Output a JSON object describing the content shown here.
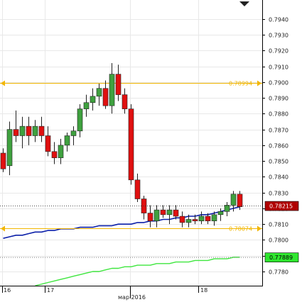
{
  "chart_data": {
    "type": "candlestick",
    "title": "",
    "xlabel": "",
    "ylabel": "",
    "ylim": [
      0.7771,
      0.7952
    ],
    "grid": true,
    "price_ticks": [
      "0.7940",
      "0.7930",
      "0.7920",
      "0.7910",
      "0.7900",
      "0.7890",
      "0.7880",
      "0.7870",
      "0.7860",
      "0.7850",
      "0.7840",
      "0.7830",
      "0.7820",
      "0.7810",
      "0.7800",
      "0.7790",
      "0.7780"
    ],
    "time_labels": [
      "16",
      "17",
      "мар 2016",
      "18"
    ],
    "colors": {
      "bull": "#3fa13f",
      "bear": "#e01010",
      "ma_blue": "#0b1fa8",
      "ma_green": "#3ee63e",
      "hline": "#f2b600",
      "current_tag": "#b00000",
      "green_tag": "#2ee62e"
    },
    "horizontal_lines": [
      {
        "label": "0.78994",
        "value": 0.78994
      },
      {
        "label": "0.78074",
        "value": 0.78074
      }
    ],
    "price_tags": [
      {
        "label": "0.78215",
        "value": 0.78215,
        "kind": "current"
      },
      {
        "label": "0.77889",
        "value": 0.77889,
        "kind": "indicator"
      }
    ],
    "candles": [
      {
        "o": 0.7855,
        "h": 0.7858,
        "l": 0.7843,
        "c": 0.7845
      },
      {
        "o": 0.7847,
        "h": 0.7875,
        "l": 0.7841,
        "c": 0.787
      },
      {
        "o": 0.787,
        "h": 0.7882,
        "l": 0.7862,
        "c": 0.7866
      },
      {
        "o": 0.7866,
        "h": 0.7878,
        "l": 0.7858,
        "c": 0.7872
      },
      {
        "o": 0.7872,
        "h": 0.7878,
        "l": 0.786,
        "c": 0.7866
      },
      {
        "o": 0.7866,
        "h": 0.7876,
        "l": 0.7862,
        "c": 0.7872
      },
      {
        "o": 0.7872,
        "h": 0.7878,
        "l": 0.7862,
        "c": 0.7866
      },
      {
        "o": 0.7866,
        "h": 0.7872,
        "l": 0.7853,
        "c": 0.7856
      },
      {
        "o": 0.7856,
        "h": 0.7862,
        "l": 0.7848,
        "c": 0.7852
      },
      {
        "o": 0.7852,
        "h": 0.7864,
        "l": 0.7848,
        "c": 0.786
      },
      {
        "o": 0.786,
        "h": 0.7868,
        "l": 0.7856,
        "c": 0.7866
      },
      {
        "o": 0.7866,
        "h": 0.7872,
        "l": 0.786,
        "c": 0.7869
      },
      {
        "o": 0.7869,
        "h": 0.7886,
        "l": 0.7865,
        "c": 0.7883
      },
      {
        "o": 0.7883,
        "h": 0.7892,
        "l": 0.7878,
        "c": 0.7887
      },
      {
        "o": 0.7887,
        "h": 0.7896,
        "l": 0.7882,
        "c": 0.7891
      },
      {
        "o": 0.7891,
        "h": 0.7899,
        "l": 0.7885,
        "c": 0.7896
      },
      {
        "o": 0.7896,
        "h": 0.7901,
        "l": 0.7883,
        "c": 0.7885
      },
      {
        "o": 0.7885,
        "h": 0.7912,
        "l": 0.788,
        "c": 0.7905
      },
      {
        "o": 0.7905,
        "h": 0.7911,
        "l": 0.7888,
        "c": 0.7892
      },
      {
        "o": 0.7892,
        "h": 0.7896,
        "l": 0.788,
        "c": 0.7883
      },
      {
        "o": 0.7883,
        "h": 0.7886,
        "l": 0.7835,
        "c": 0.7838
      },
      {
        "o": 0.7838,
        "h": 0.7842,
        "l": 0.7824,
        "c": 0.7826
      },
      {
        "o": 0.7826,
        "h": 0.7828,
        "l": 0.7813,
        "c": 0.7817
      },
      {
        "o": 0.7817,
        "h": 0.7822,
        "l": 0.7808,
        "c": 0.7812
      },
      {
        "o": 0.7812,
        "h": 0.7822,
        "l": 0.7808,
        "c": 0.7819
      },
      {
        "o": 0.7819,
        "h": 0.7822,
        "l": 0.7814,
        "c": 0.7816
      },
      {
        "o": 0.7816,
        "h": 0.7822,
        "l": 0.781,
        "c": 0.7819
      },
      {
        "o": 0.7819,
        "h": 0.7822,
        "l": 0.7813,
        "c": 0.7815
      },
      {
        "o": 0.7815,
        "h": 0.7818,
        "l": 0.7808,
        "c": 0.7811
      },
      {
        "o": 0.7811,
        "h": 0.7816,
        "l": 0.7808,
        "c": 0.7813
      },
      {
        "o": 0.7813,
        "h": 0.7816,
        "l": 0.781,
        "c": 0.7812
      },
      {
        "o": 0.7812,
        "h": 0.7818,
        "l": 0.781,
        "c": 0.7815
      },
      {
        "o": 0.7815,
        "h": 0.7817,
        "l": 0.781,
        "c": 0.7812
      },
      {
        "o": 0.7812,
        "h": 0.7818,
        "l": 0.7809,
        "c": 0.7816
      },
      {
        "o": 0.7816,
        "h": 0.782,
        "l": 0.7812,
        "c": 0.7818
      },
      {
        "o": 0.7818,
        "h": 0.7824,
        "l": 0.7815,
        "c": 0.7822
      },
      {
        "o": 0.7822,
        "h": 0.7831,
        "l": 0.7818,
        "c": 0.7829
      },
      {
        "o": 0.7829,
        "h": 0.7831,
        "l": 0.7819,
        "c": 0.7821
      }
    ],
    "ma_blue": [
      0.7801,
      0.7802,
      0.7803,
      0.7803,
      0.7804,
      0.7805,
      0.7805,
      0.7806,
      0.7806,
      0.7807,
      0.7807,
      0.7807,
      0.7808,
      0.7808,
      0.7808,
      0.7809,
      0.7809,
      0.7809,
      0.781,
      0.781,
      0.781,
      0.7811,
      0.7811,
      0.7812,
      0.7812,
      0.7813,
      0.7813,
      0.7814,
      0.7814,
      0.7815,
      0.7815,
      0.7816,
      0.7816,
      0.7817,
      0.7818,
      0.7819,
      0.782,
      0.7821
    ],
    "ma_green": [
      null,
      null,
      null,
      null,
      null,
      0.7771,
      0.7772,
      0.7773,
      0.7774,
      0.7775,
      0.7776,
      0.7777,
      0.7778,
      0.7779,
      0.778,
      0.778,
      0.7781,
      0.7782,
      0.7782,
      0.7783,
      0.7783,
      0.7784,
      0.7784,
      0.7784,
      0.7785,
      0.7785,
      0.7785,
      0.7786,
      0.7786,
      0.7786,
      0.7787,
      0.7787,
      0.7787,
      0.7788,
      0.7788,
      0.7788,
      0.7789,
      0.7789
    ]
  }
}
